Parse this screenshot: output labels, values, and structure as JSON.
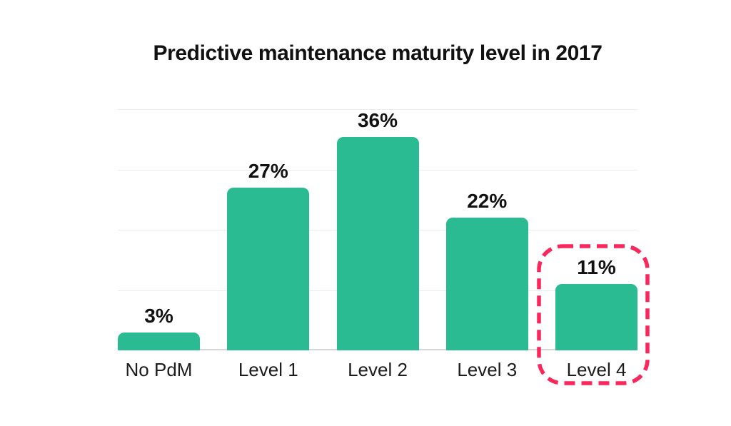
{
  "chart_data": {
    "type": "bar",
    "title": "Predictive maintenance maturity level in 2017",
    "categories": [
      "No PdM",
      "Level 1",
      "Level 2",
      "Level 3",
      "Level 4"
    ],
    "values": [
      3,
      27,
      36,
      22,
      11
    ],
    "value_labels": [
      "3%",
      "27%",
      "36%",
      "22%",
      "11%"
    ],
    "unit": "%",
    "ylim": [
      0,
      40
    ],
    "gridlines": [
      10,
      20,
      30,
      40
    ],
    "grid": "horizontal",
    "legend": "none",
    "bar_color": "#2abb92",
    "highlight": {
      "category": "Level 4",
      "style": "dashed-rounded-box",
      "color": "#f9275b"
    },
    "colors": {
      "text": "#111111",
      "gridline": "#ececec",
      "axis_line": "#d6d6d6",
      "background": "#ffffff"
    }
  }
}
